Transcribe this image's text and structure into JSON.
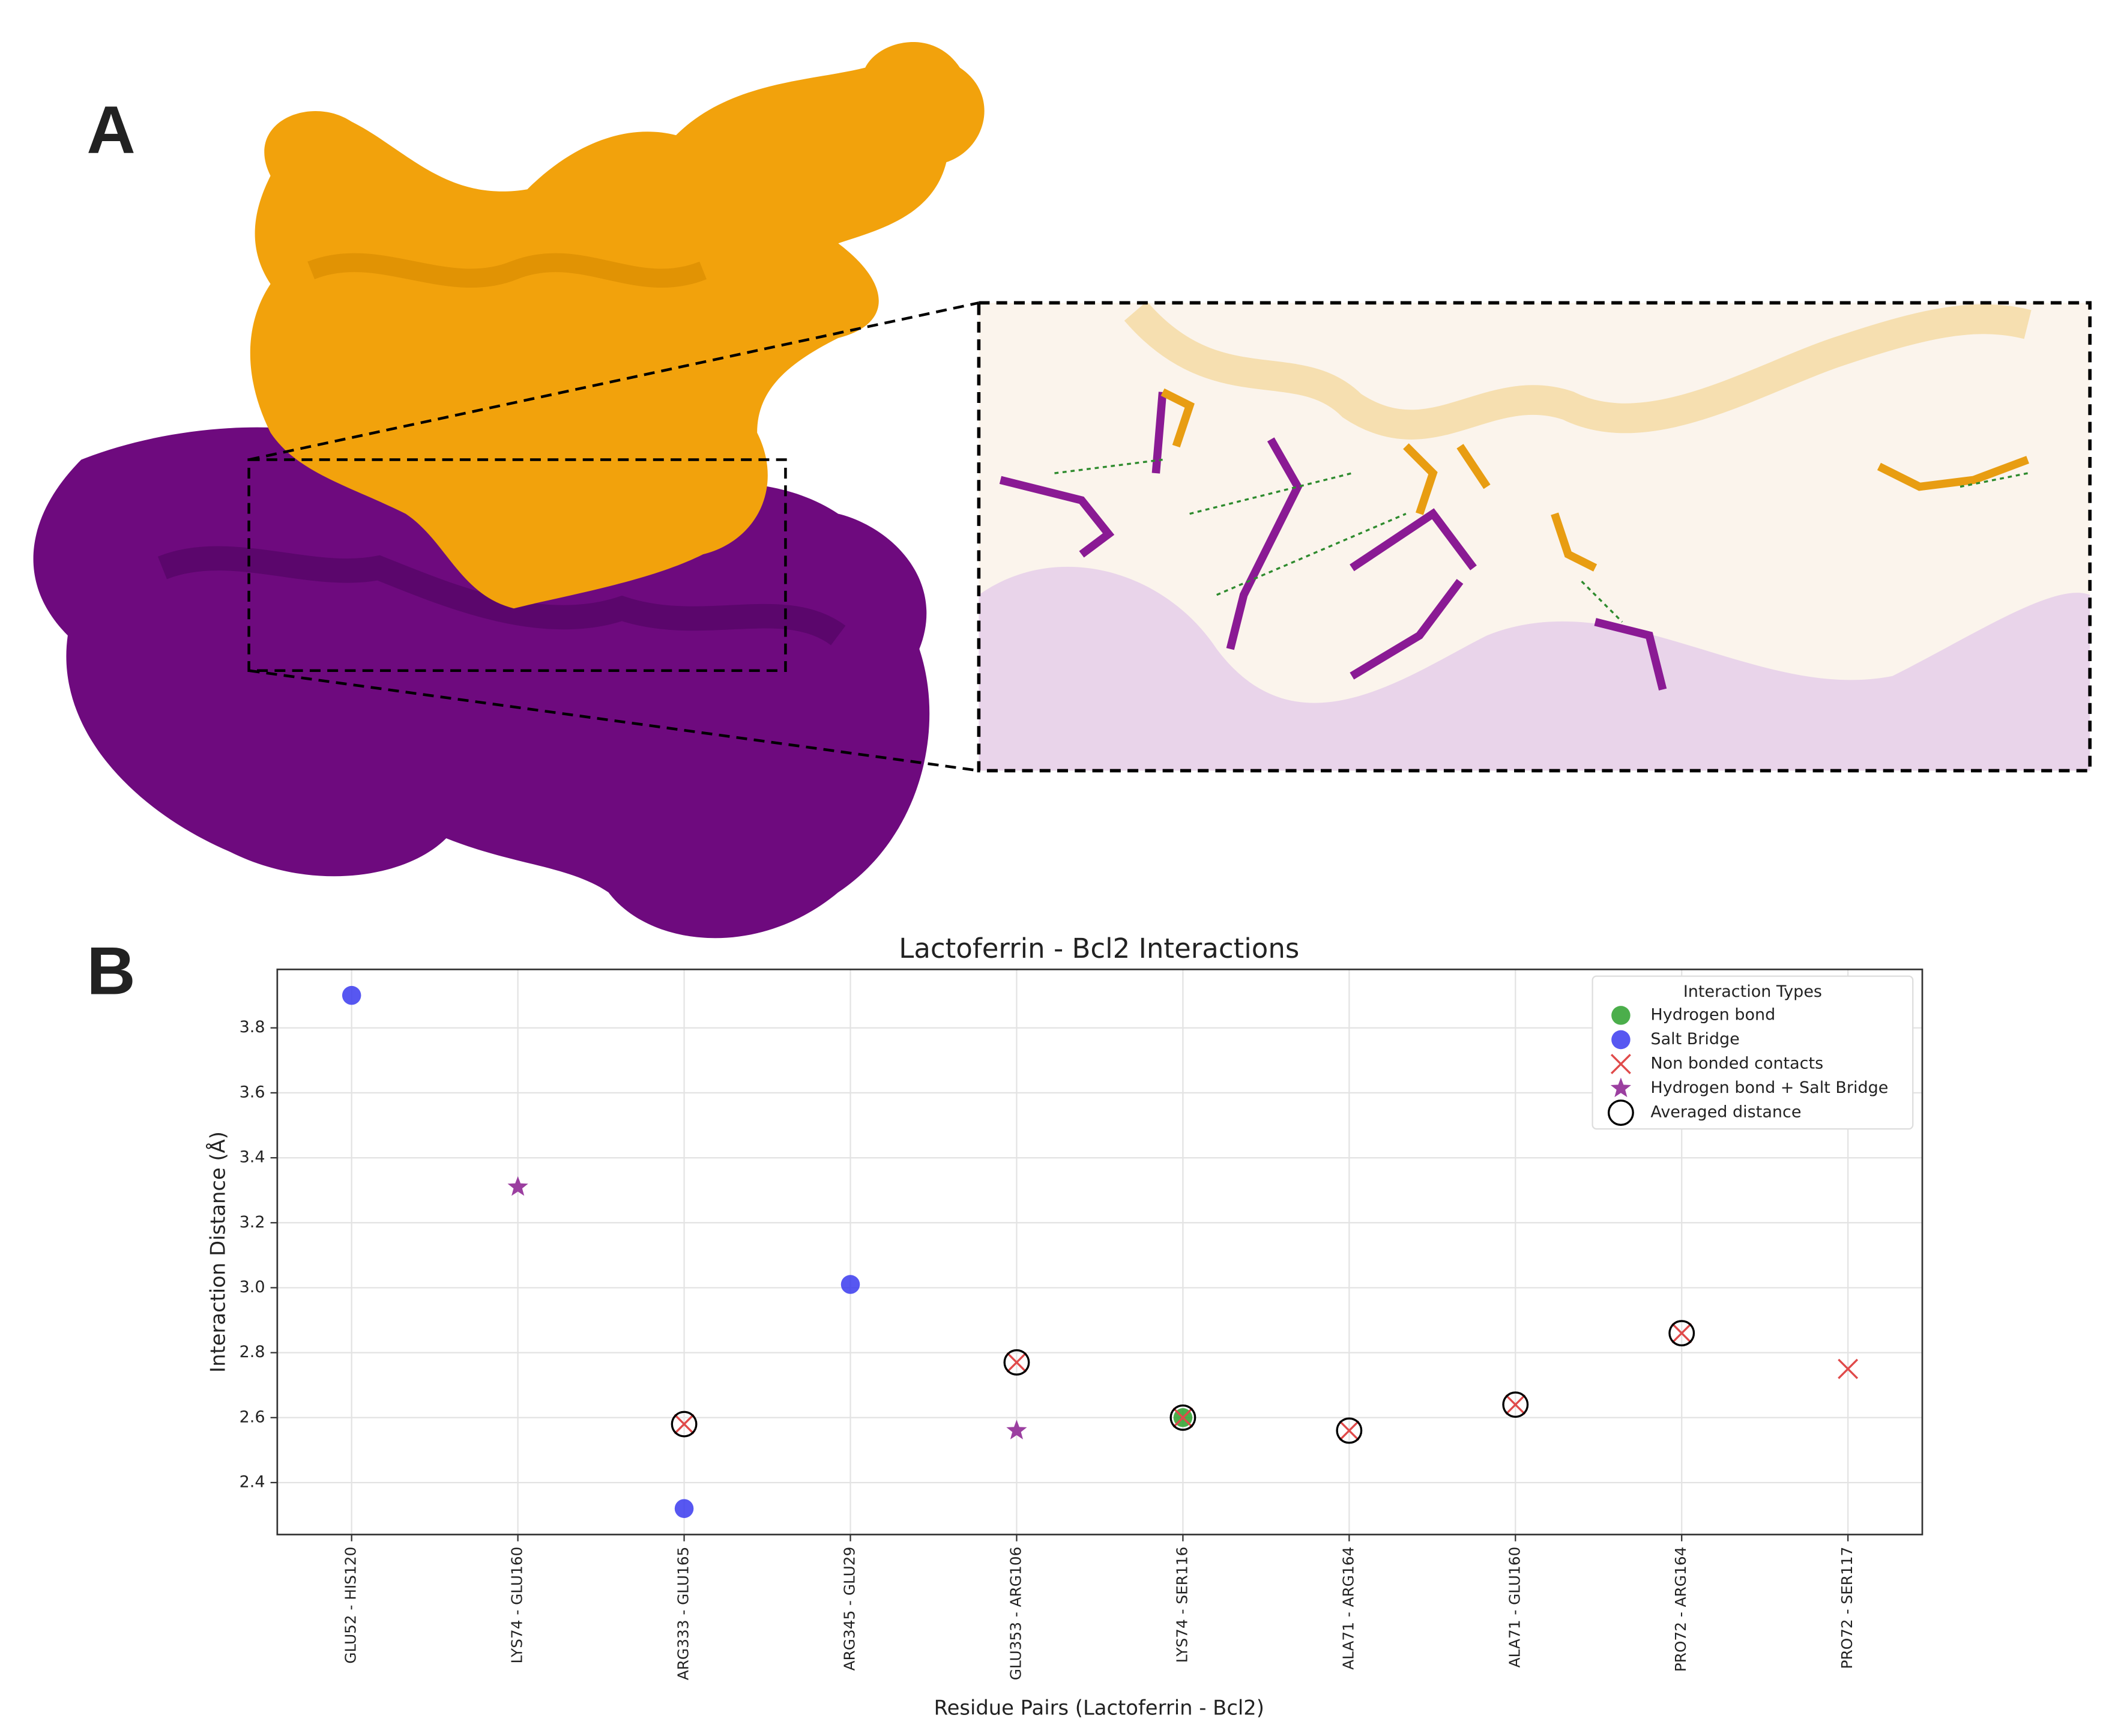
{
  "panel_labels": [
    "A",
    "B"
  ],
  "chart_data": {
    "type": "scatter",
    "title": "Lactoferrin - Bcl2 Interactions",
    "x_label": "Residue Pairs (Lactoferrin - Bcl2)",
    "y_label": "Interaction Distance (Å)",
    "categories": [
      "GLU52 - HIS120",
      "LYS74 - GLU160",
      "ARG333 - GLU165",
      "ARG345 - GLU29",
      "GLU353 - ARG106",
      "LYS74 - SER116",
      "ALA71 - ARG164",
      "ALA71 - GLU160",
      "PRO72 - ARG164",
      "PRO72 - SER117"
    ],
    "series": [
      {
        "name": "Hydrogen bond",
        "color": "#2ca02c",
        "marker": "circle",
        "values": [
          null,
          null,
          null,
          null,
          null,
          2.6,
          null,
          null,
          null,
          null
        ]
      },
      {
        "name": "Salt Bridge",
        "color": "#3a3aef",
        "marker": "circle",
        "values": [
          3.9,
          null,
          2.32,
          3.01,
          null,
          null,
          null,
          null,
          null,
          null
        ]
      },
      {
        "name": "Non bonded contacts",
        "color": "#e04a4a",
        "marker": "x",
        "values": [
          null,
          null,
          2.58,
          null,
          2.77,
          2.6,
          2.56,
          2.64,
          2.86,
          2.75
        ]
      },
      {
        "name": "Hydrogen bond + Salt Bridge",
        "color": "#9b3fa0",
        "marker": "star",
        "values": [
          null,
          3.31,
          null,
          null,
          2.56,
          null,
          null,
          null,
          null,
          null
        ]
      },
      {
        "name": "Averaged distance",
        "color": "#000000",
        "marker": "open-circle",
        "values": [
          null,
          null,
          2.58,
          null,
          2.77,
          2.6,
          2.56,
          2.64,
          2.86,
          null
        ]
      }
    ],
    "ylim": [
      2.24,
      3.98
    ],
    "yticks": [
      2.4,
      2.6,
      2.8,
      {
        "value": 3,
        "label": "3.0"
      },
      3.2,
      3.4,
      3.6,
      3.8
    ],
    "grid": true,
    "legend_title": "Interaction Types",
    "legend": "upper right"
  }
}
